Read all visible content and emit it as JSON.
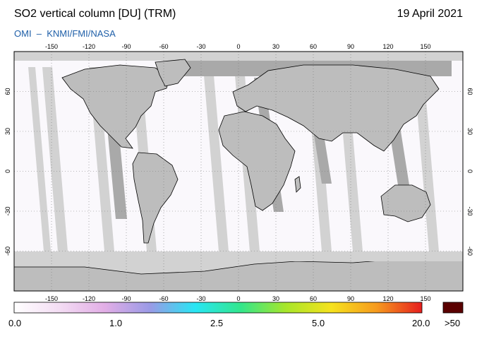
{
  "header": {
    "title": "SO2 vertical column [DU] (TRM)",
    "date": "19 April 2021",
    "credit": "OMI  –  KNMI/FMI/NASA"
  },
  "map": {
    "lon_ticks": [
      "-150",
      "-120",
      "-90",
      "-60",
      "-30",
      "0",
      "30",
      "60",
      "90",
      "120",
      "150"
    ],
    "lat_ticks": [
      "60",
      "30",
      "0",
      "-30",
      "-60"
    ],
    "lon_range": [
      -180,
      180
    ],
    "lat_range": [
      -90,
      90
    ],
    "colors": {
      "no_data": "#d2d2d2",
      "nighttime": "#a9a9a9",
      "low_values": "#faf8fc",
      "coastline": "#000000",
      "grid": "#777777"
    }
  },
  "colorbar": {
    "labels": [
      "0.0",
      "1.0",
      "2.5",
      "5.0",
      "20.0",
      ">50"
    ],
    "overflow_color": "#5a0000",
    "gradient_stops": [
      "#ffffff",
      "#f4ddf4",
      "#e2aee6",
      "#9a9ae6",
      "#28e6f4",
      "#32e68c",
      "#a8e62a",
      "#f6e21e",
      "#f69a1e",
      "#e61e1e"
    ]
  }
}
